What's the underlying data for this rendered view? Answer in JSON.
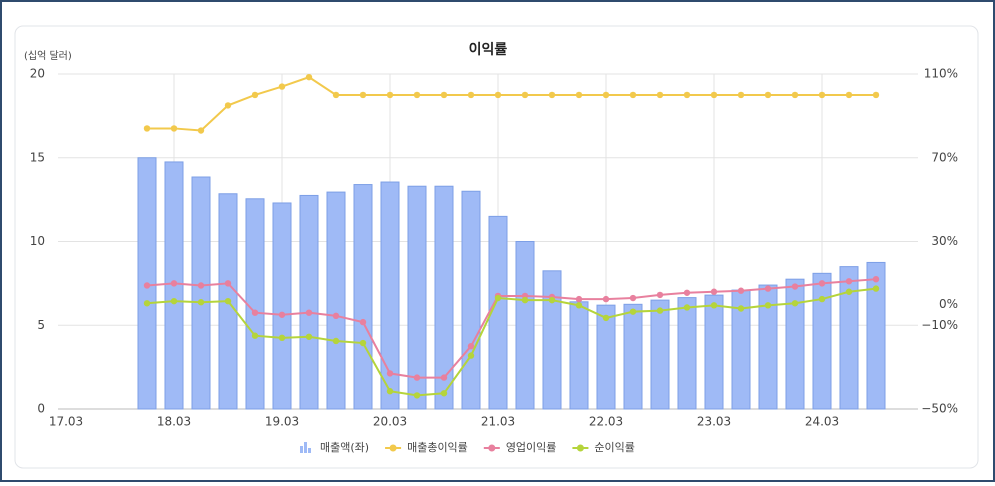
{
  "chart_data": {
    "type": "bar-line",
    "title": "이익률",
    "y_unit_label": "(십억 달러)",
    "categories": [
      "17.03",
      null,
      null,
      null,
      "18.03",
      null,
      null,
      null,
      "19.03",
      null,
      null,
      null,
      "20.03",
      null,
      null,
      null,
      "21.03",
      null,
      null,
      null,
      "22.03",
      null,
      null,
      null,
      "23.03",
      null,
      null,
      null,
      "24.03",
      null,
      null
    ],
    "series": [
      {
        "name": "매출액(좌)",
        "type": "bar",
        "axis": "y",
        "color": "#9fbaf6",
        "values": [
          null,
          null,
          null,
          15.0,
          14.75,
          13.85,
          12.85,
          12.55,
          12.3,
          12.75,
          12.95,
          13.4,
          13.55,
          13.3,
          13.3,
          13.0,
          11.5,
          10.0,
          8.25,
          6.4,
          6.2,
          6.25,
          6.5,
          6.65,
          6.8,
          7.1,
          7.4,
          7.75,
          8.1,
          8.5,
          8.75
        ]
      },
      {
        "name": "매출총이익률",
        "type": "line",
        "axis": "y2",
        "color": "#f2c94c",
        "values": [
          null,
          null,
          null,
          84,
          84,
          83,
          95,
          100,
          104,
          108.5,
          100,
          100,
          100,
          100,
          100,
          100,
          100,
          100,
          100,
          100,
          100,
          100,
          100,
          100,
          100,
          100,
          100,
          100,
          100,
          100,
          100
        ]
      },
      {
        "name": "영업이익률",
        "type": "line",
        "axis": "y2",
        "color": "#e8809e",
        "values": [
          null,
          null,
          null,
          9,
          10,
          9,
          10,
          -4,
          -5,
          -4,
          -5.5,
          -8.5,
          -33,
          -35,
          -35,
          -20,
          4,
          4,
          3.5,
          2.5,
          2.5,
          3,
          4.5,
          5.5,
          6,
          6.5,
          7.5,
          8.5,
          10,
          11,
          12
        ]
      },
      {
        "name": "순이익률",
        "type": "line",
        "axis": "y2",
        "color": "#b5d43b",
        "values": [
          null,
          null,
          null,
          0.5,
          1.5,
          1,
          1.5,
          -15,
          -16,
          -15.5,
          -17.5,
          -18.5,
          -41.5,
          -43.5,
          -42.5,
          -24.5,
          3,
          2,
          2,
          -0.5,
          -6.5,
          -3.5,
          -3,
          -1.5,
          -0.5,
          -2,
          -0.5,
          0.5,
          2.5,
          6,
          7.5
        ]
      }
    ],
    "ylim": [
      0,
      20
    ],
    "yticks": [
      0,
      5,
      10,
      15,
      20
    ],
    "y2lim": [
      -50,
      110
    ],
    "y2ticks": [
      {
        "value": -50,
        "label": "−50%"
      },
      {
        "value": -10,
        "label": "−10%"
      },
      {
        "value": 0,
        "label": "0%"
      },
      {
        "value": 30,
        "label": "30%"
      },
      {
        "value": 70,
        "label": "70%"
      },
      {
        "value": 110,
        "label": "110%"
      }
    ],
    "grid": true,
    "legend": "bottom"
  }
}
